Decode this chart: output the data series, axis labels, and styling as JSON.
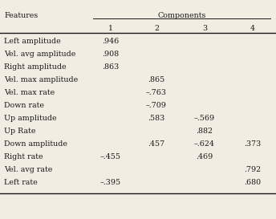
{
  "title_left": "Features",
  "title_right": "Components",
  "col_headers": [
    "1",
    "2",
    "3",
    "4"
  ],
  "rows": [
    [
      "Left amplitude",
      ".946",
      "",
      "",
      ""
    ],
    [
      "Vel. avg amplitude",
      ".908",
      "",
      "",
      ""
    ],
    [
      "Right amplitude",
      ".863",
      "",
      "",
      ""
    ],
    [
      "Vel. max amplitude",
      "",
      ".865",
      "",
      ""
    ],
    [
      "Vel. max rate",
      "",
      "–.763",
      "",
      ""
    ],
    [
      "Down rate",
      "",
      "–.709",
      "",
      ""
    ],
    [
      "Up amplitude",
      "",
      ".583",
      "–.569",
      ""
    ],
    [
      "Up Rate",
      "",
      "",
      ".882",
      ""
    ],
    [
      "Down amplitude",
      "",
      ".457",
      "–.624",
      ".373"
    ],
    [
      "Right rate",
      "–.455",
      "",
      ".469",
      ""
    ],
    [
      "Vel. avg rate",
      "",
      "",
      "",
      ".792"
    ],
    [
      "Left rate",
      "–.395",
      "",
      "",
      ".680"
    ]
  ],
  "bg_color": "#f2ede3",
  "text_color": "#1a1a1a",
  "font_size": 6.8
}
